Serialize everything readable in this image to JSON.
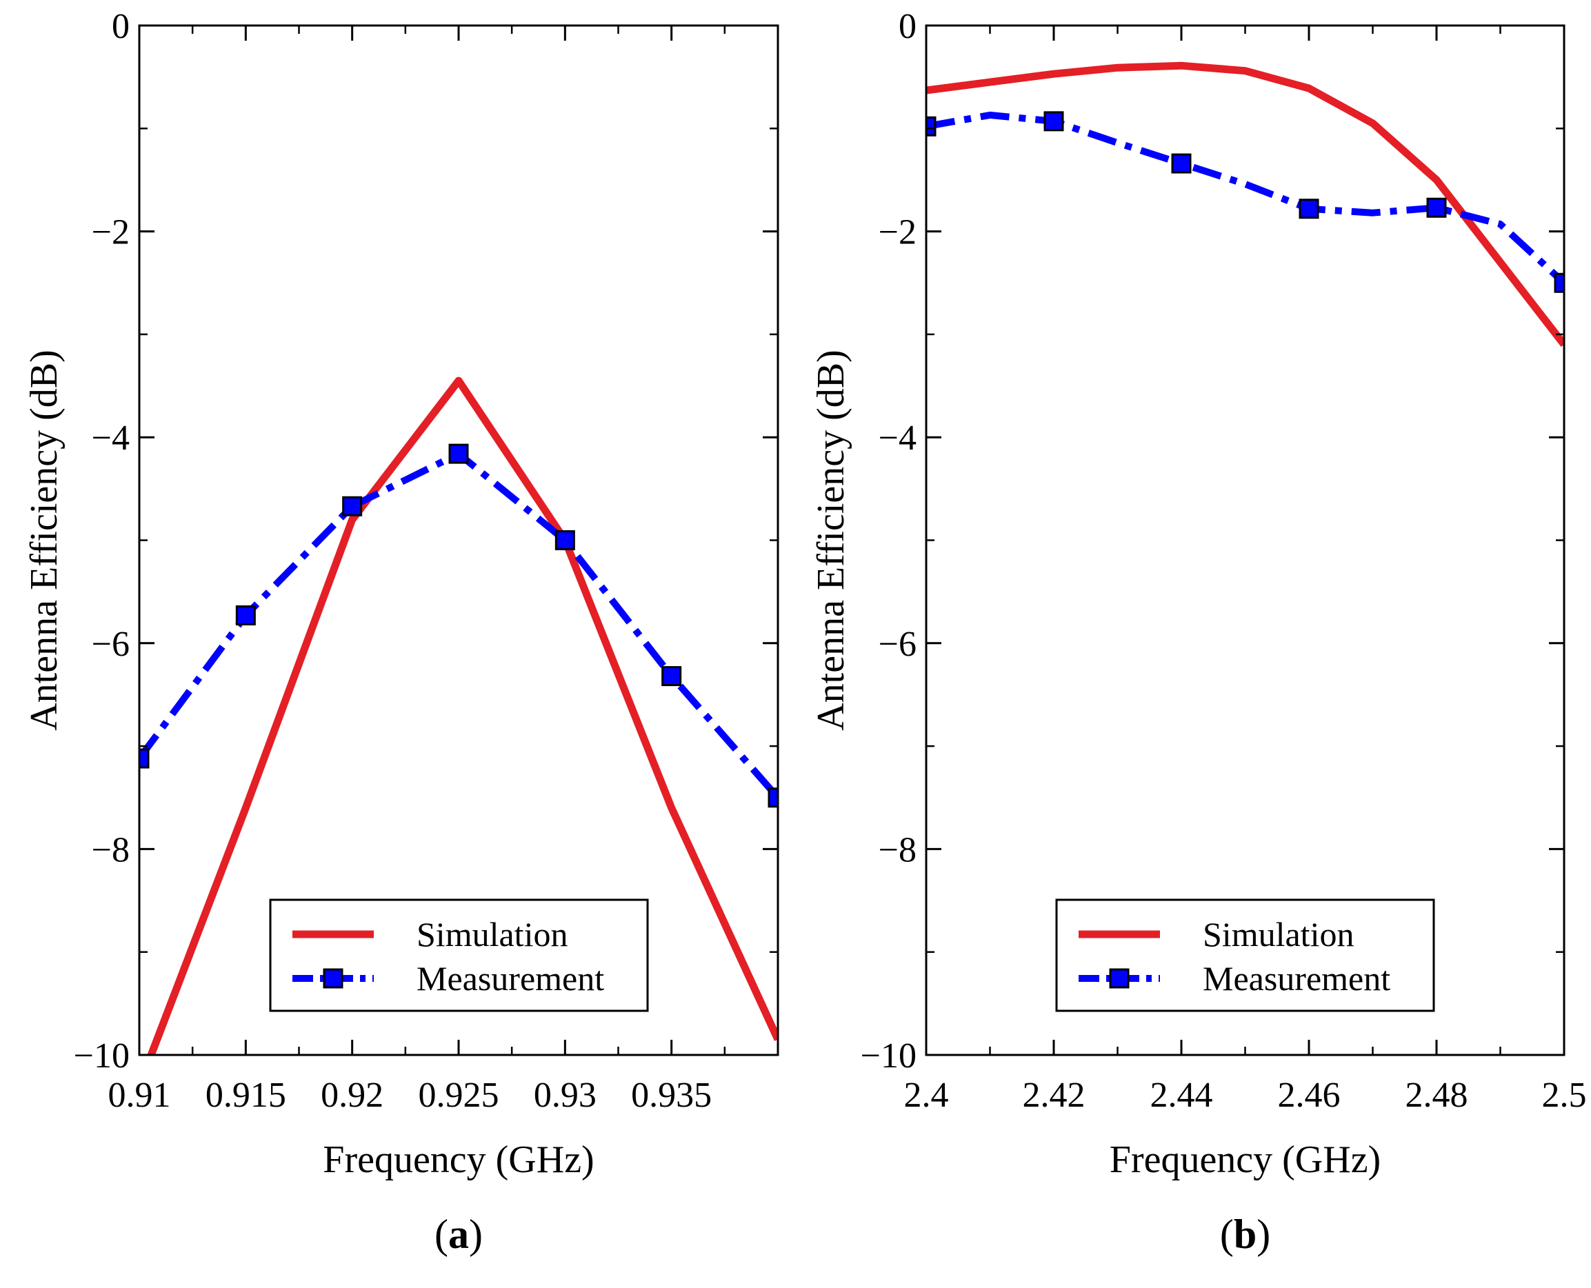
{
  "figure": {
    "panels": [
      "a",
      "b"
    ]
  },
  "colors": {
    "simulation": "#e41f26",
    "measurement": "#0000ff",
    "axis": "#000000"
  },
  "chart_data": [
    {
      "type": "line",
      "caption_letter": "a",
      "xlabel": "Frequency (GHz)",
      "ylabel": "Antenna Efficiency (dB)",
      "xlim": [
        0.91,
        0.94
      ],
      "ylim": [
        -10,
        0
      ],
      "xticks": [
        0.91,
        0.915,
        0.92,
        0.925,
        0.93,
        0.935
      ],
      "xtick_labels": [
        "0.91",
        "0.915",
        "0.92",
        "0.925",
        "0.93",
        "0.935"
      ],
      "xminor": [
        0.9125,
        0.9175,
        0.9225,
        0.9275,
        0.9325,
        0.9375
      ],
      "yticks": [
        0,
        -2,
        -4,
        -6,
        -8,
        -10
      ],
      "ytick_labels": [
        "0",
        "−2",
        "−4",
        "−6",
        "−8",
        "−10"
      ],
      "yminor": [
        -1,
        -3,
        -5,
        -7,
        -9
      ],
      "legend_position": "bottom-right",
      "series": [
        {
          "name": "Simulation",
          "style": "solid",
          "markers": false,
          "x": [
            0.91,
            0.915,
            0.92,
            0.925,
            0.93,
            0.935,
            0.94
          ],
          "y": [
            -10.3,
            -7.6,
            -4.8,
            -3.45,
            -5.0,
            -7.6,
            -9.85
          ]
        },
        {
          "name": "Measurement",
          "style": "dashdot",
          "markers": true,
          "x": [
            0.91,
            0.915,
            0.92,
            0.925,
            0.93,
            0.935,
            0.94
          ],
          "y": [
            -7.12,
            -5.73,
            -4.67,
            -4.16,
            -5.0,
            -6.32,
            -7.5
          ]
        }
      ]
    },
    {
      "type": "line",
      "caption_letter": "b",
      "xlabel": "Frequency (GHz)",
      "ylabel": "Antenna Efficiency (dB)",
      "xlim": [
        2.4,
        2.5
      ],
      "ylim": [
        -10,
        0
      ],
      "xticks": [
        2.4,
        2.42,
        2.44,
        2.46,
        2.48,
        2.5
      ],
      "xtick_labels": [
        "2.4",
        "2.42",
        "2.44",
        "2.46",
        "2.48",
        "2.5"
      ],
      "xminor": [
        2.41,
        2.43,
        2.45,
        2.47,
        2.49
      ],
      "yticks": [
        0,
        -2,
        -4,
        -6,
        -8,
        -10
      ],
      "ytick_labels": [
        "0",
        "−2",
        "−4",
        "−6",
        "−8",
        "−10"
      ],
      "yminor": [
        -1,
        -3,
        -5,
        -7,
        -9
      ],
      "legend_position": "bottom-center",
      "series": [
        {
          "name": "Simulation",
          "style": "solid",
          "markers": false,
          "x": [
            2.4,
            2.41,
            2.42,
            2.43,
            2.44,
            2.45,
            2.46,
            2.47,
            2.48,
            2.49,
            2.5
          ],
          "y": [
            -0.63,
            -0.55,
            -0.47,
            -0.41,
            -0.39,
            -0.44,
            -0.61,
            -0.95,
            -1.5,
            -2.3,
            -3.1
          ]
        },
        {
          "name": "Measurement",
          "style": "dashdot",
          "markers": true,
          "marker_x": [
            2.4,
            2.42,
            2.44,
            2.46,
            2.48,
            2.5
          ],
          "x": [
            2.4,
            2.41,
            2.42,
            2.43,
            2.44,
            2.45,
            2.46,
            2.47,
            2.48,
            2.49,
            2.5
          ],
          "y": [
            -0.98,
            -0.87,
            -0.93,
            -1.14,
            -1.34,
            -1.54,
            -1.78,
            -1.82,
            -1.77,
            -1.93,
            -2.5
          ]
        }
      ]
    }
  ]
}
